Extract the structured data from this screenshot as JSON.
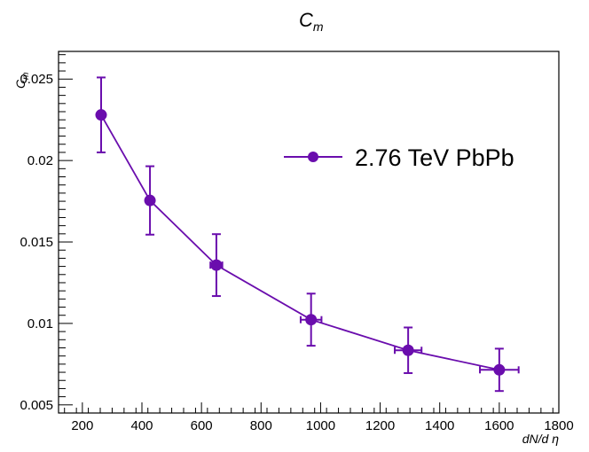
{
  "chart_data": {
    "type": "line",
    "title": "C",
    "title_subscript": "m",
    "xlabel": "dN/d η",
    "ylabel": "C",
    "ylabel_subscript": "m",
    "xlim": [
      120,
      1800
    ],
    "ylim": [
      0.0045,
      0.0267
    ],
    "x_ticks": [
      200,
      400,
      600,
      800,
      1000,
      1200,
      1400,
      1600,
      1800
    ],
    "y_ticks": [
      0.005,
      0.01,
      0.015,
      0.02,
      0.025
    ],
    "x_tick_labels": [
      "200",
      "400",
      "600",
      "800",
      "1000",
      "1200",
      "1400",
      "1600",
      "1800"
    ],
    "y_tick_labels": [
      "0.005",
      "0.01",
      "0.015",
      "0.02",
      "0.025"
    ],
    "grid": false,
    "legend_position": "top-right",
    "series_color": "#6a0dad",
    "series": [
      {
        "name": "2.76 TeV PbPb",
        "points": [
          {
            "x": 263,
            "y": 0.0228,
            "y_err": 0.0023,
            "x_err": 0
          },
          {
            "x": 427,
            "y": 0.01755,
            "y_err": 0.0021,
            "x_err": 0
          },
          {
            "x": 650,
            "y": 0.01358,
            "y_err": 0.0019,
            "x_err": 20
          },
          {
            "x": 968,
            "y": 0.01023,
            "y_err": 0.0016,
            "x_err": 35
          },
          {
            "x": 1294,
            "y": 0.00835,
            "y_err": 0.0014,
            "x_err": 45
          },
          {
            "x": 1600,
            "y": 0.00715,
            "y_err": 0.0013,
            "x_err": 65
          }
        ]
      }
    ]
  }
}
